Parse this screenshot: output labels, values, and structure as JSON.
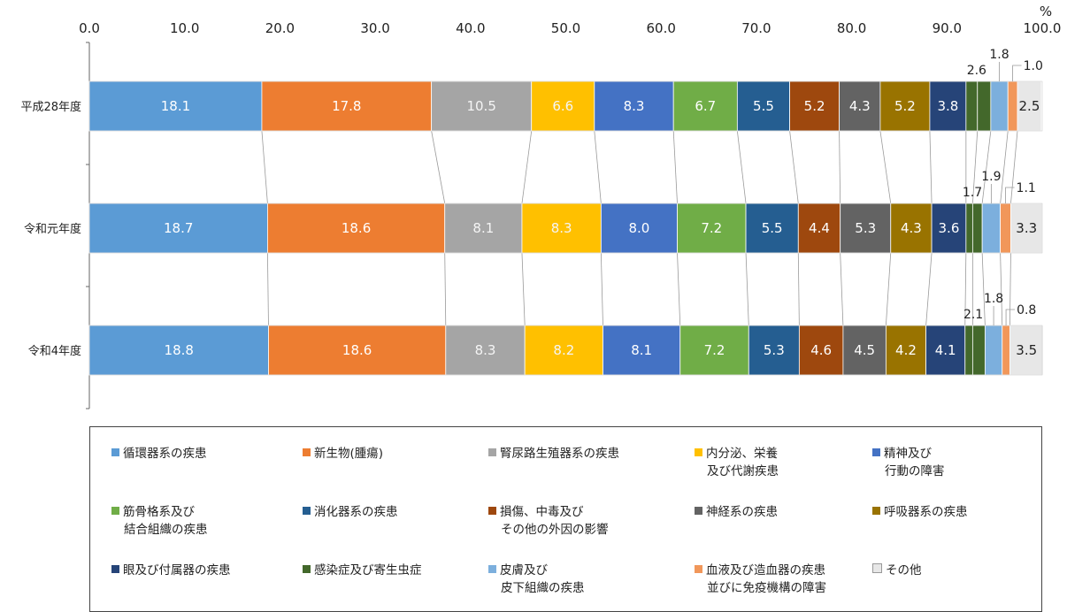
{
  "chart_data": {
    "type": "bar",
    "stacked": true,
    "orientation": "horizontal",
    "unit_label": "%",
    "xlim": [
      0,
      100
    ],
    "xticks": [
      "0.0",
      "10.0",
      "20.0",
      "30.0",
      "40.0",
      "50.0",
      "60.0",
      "70.0",
      "80.0",
      "90.0",
      "100.0"
    ],
    "categories": [
      "平成28年度",
      "令和元年度",
      "令和4年度"
    ],
    "series": [
      {
        "name": "循環器系の疾患",
        "color": "#5B9BD5",
        "values": [
          18.1,
          18.7,
          18.8
        ]
      },
      {
        "name": "新生物(腫瘍)",
        "color": "#ED7D31",
        "values": [
          17.8,
          18.6,
          18.6
        ]
      },
      {
        "name": "腎尿路生殖器系の疾患",
        "color": "#A5A5A5",
        "values": [
          10.5,
          8.1,
          8.3
        ]
      },
      {
        "name": "内分泌、栄養\n及び代謝疾患",
        "color": "#FFC000",
        "values": [
          6.6,
          8.3,
          8.2
        ]
      },
      {
        "name": "精神及び\n行動の障害",
        "color": "#4472C4",
        "values": [
          8.3,
          8.0,
          8.1
        ]
      },
      {
        "name": "筋骨格系及び\n結合組織の疾患",
        "color": "#70AD47",
        "values": [
          6.7,
          7.2,
          7.2
        ]
      },
      {
        "name": "消化器系の疾患",
        "color": "#255E91",
        "values": [
          5.5,
          5.5,
          5.3
        ]
      },
      {
        "name": "損傷、中毒及び\nその他の外因の影響",
        "color": "#9E480E",
        "values": [
          5.2,
          4.4,
          4.6
        ]
      },
      {
        "name": "神経系の疾患",
        "color": "#636363",
        "values": [
          4.3,
          5.3,
          4.5
        ]
      },
      {
        "name": "呼吸器系の疾患",
        "color": "#997300",
        "values": [
          5.2,
          4.3,
          4.2
        ]
      },
      {
        "name": "眼及び付属器の疾患",
        "color": "#264478",
        "values": [
          3.8,
          3.6,
          4.1
        ]
      },
      {
        "name": "感染症及び寄生虫症",
        "color": "#43682B",
        "values": [
          1.2,
          0.7,
          0.8
        ]
      },
      {
        "name": "",
        "color": "#43682B",
        "values": [
          1.4,
          1.0,
          1.3
        ]
      },
      {
        "name": "皮膚及び\n皮下組織の疾患",
        "color": "#7CAFDD",
        "values": [
          1.8,
          1.9,
          1.8
        ]
      },
      {
        "name": "血液及び造血器の疾患\n並びに免疫機構の障害",
        "color": "#F1975A",
        "values": [
          1.0,
          1.1,
          0.8
        ]
      },
      {
        "name": "その他",
        "color": "#E7E7E7",
        "values": [
          2.5,
          3.3,
          3.5
        ]
      }
    ],
    "segment_labels": [
      [
        "18.1",
        "17.8",
        "10.5",
        "6.6",
        "8.3",
        "6.7",
        "5.5",
        "5.2",
        "4.3",
        "5.2",
        "3.8",
        "",
        "",
        "",
        "",
        "2.5"
      ],
      [
        "18.7",
        "18.6",
        "8.1",
        "8.3",
        "8.0",
        "7.2",
        "5.5",
        "4.4",
        "5.3",
        "4.3",
        "3.6",
        "",
        "",
        "",
        "",
        "3.3"
      ],
      [
        "18.8",
        "18.6",
        "8.3",
        "8.2",
        "8.1",
        "7.2",
        "5.3",
        "4.6",
        "4.5",
        "4.2",
        "4.1",
        "",
        "",
        "",
        "",
        "3.5"
      ]
    ],
    "callouts": [
      {
        "cat": 0,
        "labels": [
          "2.6",
          "1.8",
          "1.0"
        ]
      },
      {
        "cat": 1,
        "labels": [
          "1.7",
          "1.9",
          "1.1"
        ]
      },
      {
        "cat": 2,
        "labels": [
          "2.1",
          "1.8",
          "0.8"
        ]
      }
    ],
    "legend": [
      "循環器系の疾患",
      "新生物(腫瘍)",
      "腎尿路生殖器系の疾患",
      "内分泌、栄養\n及び代謝疾患",
      "精神及び\n行動の障害",
      "筋骨格系及び\n結合組織の疾患",
      "消化器系の疾患",
      "損傷、中毒及び\nその他の外因の影響",
      "神経系の疾患",
      "呼吸器系の疾患",
      "眼及び付属器の疾患",
      "感染症及び寄生虫症",
      "皮膚及び\n皮下組織の疾患",
      "血液及び造血器の疾患\n並びに免疫機構の障害",
      "その他"
    ],
    "legend_colors": [
      "#5B9BD5",
      "#ED7D31",
      "#A5A5A5",
      "#FFC000",
      "#4472C4",
      "#70AD47",
      "#255E91",
      "#9E480E",
      "#636363",
      "#997300",
      "#264478",
      "#43682B",
      "#7CAFDD",
      "#F1975A",
      "#E7E7E7"
    ]
  }
}
